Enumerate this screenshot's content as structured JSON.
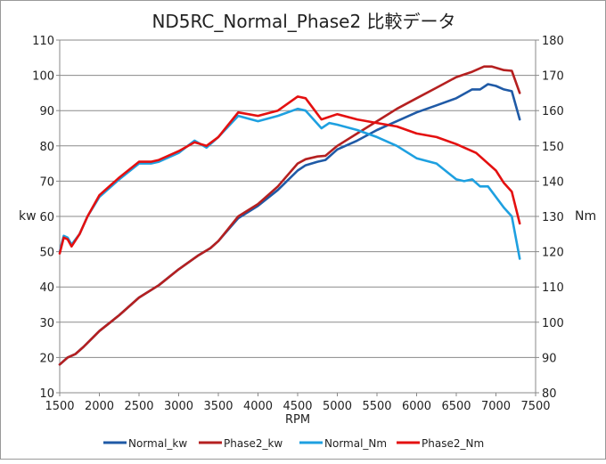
{
  "chart_data": {
    "type": "line",
    "title": "ND5RC_Normal_Phase2 比較データ",
    "xlabel": "RPM",
    "ylabel_left": "kw",
    "ylabel_right": "Nm",
    "xlim": [
      1500,
      7500
    ],
    "ylim_left": [
      10,
      110
    ],
    "ylim_right": [
      80,
      180
    ],
    "xticks": [
      1500,
      2000,
      2500,
      3000,
      3500,
      4000,
      4500,
      5000,
      5500,
      6000,
      6500,
      7000,
      7500
    ],
    "yticks_left": [
      10,
      20,
      30,
      40,
      50,
      60,
      70,
      80,
      90,
      100,
      110
    ],
    "yticks_right": [
      80,
      90,
      100,
      110,
      120,
      130,
      140,
      150,
      160,
      170,
      180
    ],
    "grid": true,
    "legend": "bottom",
    "series": [
      {
        "name": "Normal_kw",
        "axis": "left",
        "color": "#1f5aa6",
        "points": [
          [
            1500,
            18
          ],
          [
            1600,
            20
          ],
          [
            1700,
            21
          ],
          [
            1800,
            23
          ],
          [
            2000,
            27.5
          ],
          [
            2250,
            32
          ],
          [
            2500,
            37
          ],
          [
            2750,
            40.5
          ],
          [
            3000,
            45
          ],
          [
            3250,
            49
          ],
          [
            3400,
            51
          ],
          [
            3500,
            53
          ],
          [
            3750,
            59.5
          ],
          [
            4000,
            63
          ],
          [
            4250,
            67.5
          ],
          [
            4500,
            73
          ],
          [
            4600,
            74.5
          ],
          [
            4750,
            75.5
          ],
          [
            4850,
            76
          ],
          [
            5000,
            79
          ],
          [
            5250,
            81.5
          ],
          [
            5500,
            84.5
          ],
          [
            5750,
            87
          ],
          [
            6000,
            89.5
          ],
          [
            6250,
            91.5
          ],
          [
            6500,
            93.5
          ],
          [
            6700,
            96
          ],
          [
            6800,
            96
          ],
          [
            6900,
            97.5
          ],
          [
            7000,
            97
          ],
          [
            7100,
            96
          ],
          [
            7200,
            95.5
          ],
          [
            7300,
            87.5
          ]
        ]
      },
      {
        "name": "Phase2_kw",
        "axis": "left",
        "color": "#b52020",
        "points": [
          [
            1500,
            18
          ],
          [
            1600,
            20
          ],
          [
            1700,
            21
          ],
          [
            1800,
            23
          ],
          [
            2000,
            27.5
          ],
          [
            2250,
            32
          ],
          [
            2500,
            37
          ],
          [
            2750,
            40.5
          ],
          [
            3000,
            45
          ],
          [
            3250,
            49
          ],
          [
            3400,
            51
          ],
          [
            3500,
            53
          ],
          [
            3750,
            60
          ],
          [
            4000,
            63.5
          ],
          [
            4250,
            68.5
          ],
          [
            4500,
            75
          ],
          [
            4600,
            76.2
          ],
          [
            4750,
            77
          ],
          [
            4850,
            77.2
          ],
          [
            5000,
            80
          ],
          [
            5250,
            83.5
          ],
          [
            5500,
            87
          ],
          [
            5750,
            90.5
          ],
          [
            6000,
            93.5
          ],
          [
            6250,
            96.5
          ],
          [
            6500,
            99.5
          ],
          [
            6700,
            101
          ],
          [
            6850,
            102.5
          ],
          [
            6950,
            102.5
          ],
          [
            7100,
            101.5
          ],
          [
            7200,
            101.3
          ],
          [
            7300,
            95
          ]
        ]
      },
      {
        "name": "Normal_Nm",
        "axis": "right",
        "color": "#1ea0e0",
        "points": [
          [
            1500,
            120
          ],
          [
            1550,
            124.5
          ],
          [
            1600,
            124
          ],
          [
            1650,
            122
          ],
          [
            1750,
            125
          ],
          [
            1850,
            130
          ],
          [
            2000,
            135.5
          ],
          [
            2250,
            140.5
          ],
          [
            2500,
            145
          ],
          [
            2650,
            145
          ],
          [
            2750,
            145.5
          ],
          [
            3000,
            148
          ],
          [
            3200,
            151.5
          ],
          [
            3350,
            149.5
          ],
          [
            3500,
            152.5
          ],
          [
            3750,
            158.5
          ],
          [
            4000,
            157
          ],
          [
            4250,
            158.5
          ],
          [
            4500,
            160.5
          ],
          [
            4600,
            160
          ],
          [
            4800,
            155
          ],
          [
            4900,
            156.5
          ],
          [
            5000,
            156
          ],
          [
            5250,
            154.5
          ],
          [
            5500,
            152.5
          ],
          [
            5750,
            150
          ],
          [
            6000,
            146.5
          ],
          [
            6250,
            145
          ],
          [
            6500,
            140.5
          ],
          [
            6600,
            140
          ],
          [
            6700,
            140.5
          ],
          [
            6800,
            138.5
          ],
          [
            6900,
            138.5
          ],
          [
            7100,
            132.5
          ],
          [
            7200,
            130
          ],
          [
            7300,
            118
          ]
        ]
      },
      {
        "name": "Phase2_Nm",
        "axis": "right",
        "color": "#e41010",
        "points": [
          [
            1500,
            119.5
          ],
          [
            1550,
            124
          ],
          [
            1600,
            123.5
          ],
          [
            1650,
            121.5
          ],
          [
            1750,
            125
          ],
          [
            1850,
            130
          ],
          [
            2000,
            136
          ],
          [
            2250,
            141
          ],
          [
            2500,
            145.5
          ],
          [
            2650,
            145.5
          ],
          [
            2750,
            146
          ],
          [
            3000,
            148.5
          ],
          [
            3200,
            151
          ],
          [
            3350,
            150
          ],
          [
            3500,
            152.5
          ],
          [
            3750,
            159.5
          ],
          [
            4000,
            158.5
          ],
          [
            4250,
            160
          ],
          [
            4500,
            164
          ],
          [
            4600,
            163.5
          ],
          [
            4800,
            157.5
          ],
          [
            5000,
            159
          ],
          [
            5250,
            157.5
          ],
          [
            5500,
            156.5
          ],
          [
            5750,
            155.5
          ],
          [
            6000,
            153.5
          ],
          [
            6250,
            152.5
          ],
          [
            6500,
            150.5
          ],
          [
            6750,
            148
          ],
          [
            7000,
            143
          ],
          [
            7100,
            139.5
          ],
          [
            7200,
            137
          ],
          [
            7300,
            128
          ]
        ]
      }
    ]
  }
}
